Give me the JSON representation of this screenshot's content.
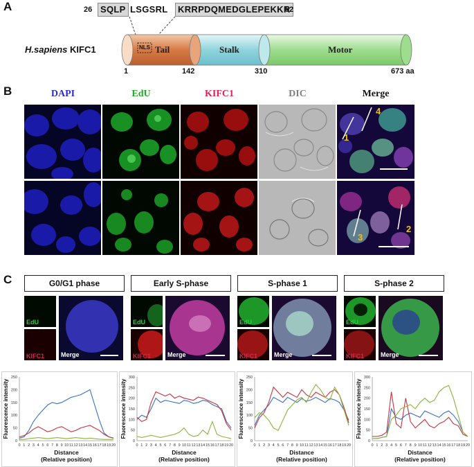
{
  "panels": {
    "a": "A",
    "b": "B",
    "c": "C"
  },
  "panel_a": {
    "seq_start": "26",
    "seq_end": "52",
    "seq_part1": "SQLP",
    "seq_part2": "LSGSRL",
    "seq_part3": "KRRPDQMEDGLEPEKKR",
    "species": "H.sapiens",
    "protein": "KIFC1",
    "nls": "NLS",
    "domains": {
      "tail": "Tail",
      "stalk": "Stalk",
      "motor": "Motor"
    },
    "positions": {
      "p1": "1",
      "p142": "142",
      "p310": "310",
      "p673": "673 aa"
    },
    "colors": {
      "tail": "#d77a45",
      "stalk": "#8fd4dc",
      "motor": "#9edc8e"
    }
  },
  "panel_b": {
    "channels": [
      "DAPI",
      "EdU",
      "KIFC1",
      "DIC",
      "Merge"
    ],
    "channel_colors": [
      "#2a2acc",
      "#22aa22",
      "#dd2255",
      "#808080",
      "#111111"
    ],
    "line_labels": [
      "1",
      "4",
      "2",
      "3"
    ]
  },
  "panel_c": {
    "phases": [
      "G0/G1 phase",
      "Early S-phase",
      "S-phase 1",
      "S-phase 2"
    ],
    "small_labels": {
      "edu": "EdU",
      "kifc1": "KIFC1",
      "merge": "Merge"
    },
    "ylabel": "Fluorescence intensity",
    "xlabel_line1": "Distance",
    "xlabel_line2": "(Relative position)"
  },
  "chart_data": [
    {
      "type": "line",
      "title": "G0/G1 phase",
      "xlabel": "Distance (Relative position)",
      "ylabel": "Fluorescence intensity",
      "x": [
        0,
        1,
        2,
        3,
        4,
        5,
        6,
        7,
        8,
        9,
        10,
        11,
        12,
        13,
        14,
        15,
        16,
        17,
        18,
        19,
        20
      ],
      "ylim": [
        0,
        250
      ],
      "yticks": [
        0,
        50,
        100,
        150,
        200,
        250
      ],
      "series": [
        {
          "color": "#3a6fc4",
          "values": [
            10,
            15,
            40,
            75,
            100,
            120,
            140,
            150,
            145,
            150,
            160,
            170,
            175,
            180,
            190,
            200,
            140,
            80,
            30,
            15,
            10
          ]
        },
        {
          "color": "#c8323c",
          "values": [
            15,
            20,
            30,
            45,
            55,
            45,
            35,
            40,
            50,
            55,
            45,
            35,
            40,
            50,
            55,
            60,
            50,
            40,
            25,
            15,
            10
          ]
        },
        {
          "color": "#8ab43c",
          "values": [
            5,
            5,
            8,
            10,
            12,
            10,
            8,
            10,
            12,
            10,
            8,
            10,
            12,
            10,
            8,
            10,
            8,
            6,
            5,
            5,
            5
          ]
        }
      ]
    },
    {
      "type": "line",
      "title": "Early S-phase",
      "xlabel": "Distance (Relative position)",
      "ylabel": "Fluorescence intensity",
      "x": [
        0,
        1,
        2,
        3,
        4,
        5,
        6,
        7,
        8,
        9,
        10,
        11,
        12,
        13,
        14,
        15,
        16,
        17,
        18,
        19,
        20
      ],
      "ylim": [
        0,
        300
      ],
      "yticks": [
        0,
        50,
        100,
        150,
        200,
        250,
        300
      ],
      "series": [
        {
          "color": "#3a6fc4",
          "values": [
            100,
            120,
            110,
            150,
            200,
            180,
            190,
            185,
            180,
            175,
            190,
            185,
            175,
            180,
            190,
            185,
            170,
            160,
            150,
            90,
            60
          ]
        },
        {
          "color": "#c8323c",
          "values": [
            110,
            90,
            100,
            180,
            230,
            220,
            210,
            220,
            200,
            210,
            200,
            195,
            190,
            205,
            200,
            190,
            180,
            170,
            140,
            80,
            50
          ]
        },
        {
          "color": "#8ab43c",
          "values": [
            20,
            15,
            20,
            25,
            20,
            15,
            20,
            25,
            30,
            40,
            60,
            30,
            20,
            25,
            50,
            30,
            90,
            30,
            20,
            15,
            10
          ]
        }
      ]
    },
    {
      "type": "line",
      "title": "S-phase 1",
      "xlabel": "Distance (Relative position)",
      "ylabel": "Fluorescence intensity",
      "x": [
        0,
        1,
        2,
        3,
        4,
        5,
        6,
        7,
        8,
        9,
        10,
        11,
        12,
        13,
        14,
        15,
        16,
        17,
        18,
        19,
        20
      ],
      "ylim": [
        0,
        250
      ],
      "yticks": [
        0,
        50,
        100,
        150,
        200,
        250
      ],
      "series": [
        {
          "color": "#3a6fc4",
          "values": [
            60,
            100,
            120,
            140,
            170,
            160,
            150,
            170,
            160,
            150,
            165,
            155,
            160,
            170,
            160,
            150,
            165,
            160,
            150,
            120,
            80
          ]
        },
        {
          "color": "#c8323c",
          "values": [
            50,
            90,
            110,
            150,
            210,
            190,
            170,
            190,
            180,
            170,
            200,
            180,
            170,
            190,
            180,
            170,
            190,
            200,
            180,
            130,
            70
          ]
        },
        {
          "color": "#8ab43c",
          "values": [
            90,
            110,
            100,
            80,
            50,
            40,
            80,
            120,
            140,
            160,
            170,
            150,
            190,
            220,
            200,
            170,
            160,
            210,
            180,
            120,
            60
          ]
        }
      ]
    },
    {
      "type": "line",
      "title": "S-phase 2",
      "xlabel": "Distance (Relative position)",
      "ylabel": "Fluorescence intensity",
      "x": [
        0,
        1,
        2,
        3,
        4,
        5,
        6,
        7,
        8,
        9,
        10,
        11,
        12,
        13,
        14,
        15,
        16,
        17,
        18,
        19,
        20
      ],
      "ylim": [
        0,
        300
      ],
      "yticks": [
        0,
        50,
        100,
        150,
        200,
        250,
        300
      ],
      "series": [
        {
          "color": "#3a6fc4",
          "values": [
            10,
            10,
            15,
            20,
            150,
            110,
            100,
            120,
            130,
            120,
            110,
            140,
            130,
            120,
            110,
            130,
            140,
            120,
            90,
            40,
            20
          ]
        },
        {
          "color": "#c8323c",
          "values": [
            20,
            20,
            25,
            40,
            230,
            80,
            60,
            200,
            90,
            60,
            80,
            100,
            70,
            60,
            80,
            90,
            110,
            80,
            70,
            30,
            20
          ]
        },
        {
          "color": "#8ab43c",
          "values": [
            10,
            10,
            15,
            20,
            100,
            120,
            150,
            160,
            170,
            150,
            180,
            200,
            180,
            190,
            230,
            250,
            260,
            200,
            120,
            40,
            20
          ]
        }
      ]
    }
  ]
}
